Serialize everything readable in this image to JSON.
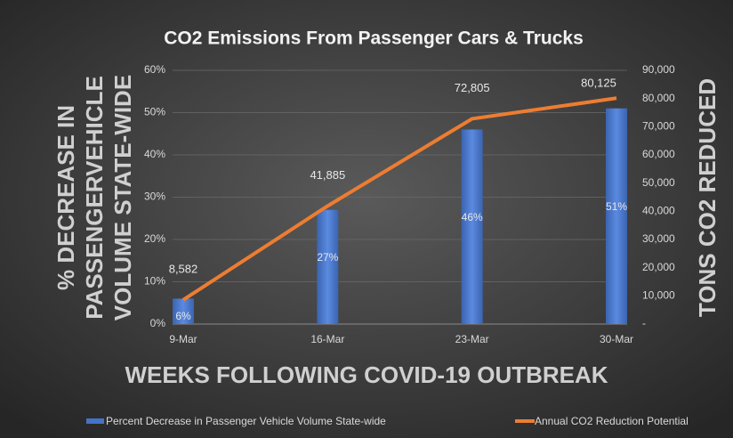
{
  "chart_data": {
    "type": "bar_line",
    "title": "CO2 Emissions From Passenger Cars & Trucks",
    "y_label_lines": [
      "% DECREASE IN",
      "PASSENGERVEHICLE",
      "VOLUME STATE-WIDE"
    ],
    "y2_label": "TONS CO2 REDUCED",
    "x_label": "WEEKS FOLLOWING COVID-19 OUTBREAK",
    "categories": [
      "9-Mar",
      "16-Mar",
      "23-Mar",
      "30-Mar"
    ],
    "series": [
      {
        "name": "Percent Decrease in Passenger Vehicle Volume State-wide",
        "color": "#4472c4",
        "type": "bar",
        "values": [
          6,
          27,
          46,
          51
        ],
        "value_labels": [
          "6%",
          "27%",
          "46%",
          "51%"
        ]
      },
      {
        "name": "Annual CO2 Reduction Potential",
        "color": "#ed7d31",
        "type": "line",
        "axis": "y2",
        "values": [
          8582,
          41885,
          72805,
          80125
        ],
        "value_labels": [
          "8,582",
          "41,885",
          "72,805",
          "80,125"
        ]
      }
    ],
    "ylim": [
      0,
      60
    ],
    "yticks": [
      {
        "value": 0,
        "label": "0%"
      },
      {
        "value": 10,
        "label": "10%"
      },
      {
        "value": 20,
        "label": "20%"
      },
      {
        "value": 30,
        "label": "30%"
      },
      {
        "value": 40,
        "label": "40%"
      },
      {
        "value": 50,
        "label": "50%"
      },
      {
        "value": 60,
        "label": "60%"
      }
    ],
    "y2lim": [
      0,
      90000
    ],
    "y2ticks": [
      {
        "value": 0,
        "label": "-"
      },
      {
        "value": 10000,
        "label": "10,000"
      },
      {
        "value": 20000,
        "label": "20,000"
      },
      {
        "value": 30000,
        "label": "30,000"
      },
      {
        "value": 40000,
        "label": "40,000"
      },
      {
        "value": 50000,
        "label": "50,000"
      },
      {
        "value": 60000,
        "label": "60,000"
      },
      {
        "value": 70000,
        "label": "70,000"
      },
      {
        "value": 80000,
        "label": "80,000"
      },
      {
        "value": 90000,
        "label": "90,000"
      }
    ],
    "grid": true,
    "legend": "bottom"
  }
}
